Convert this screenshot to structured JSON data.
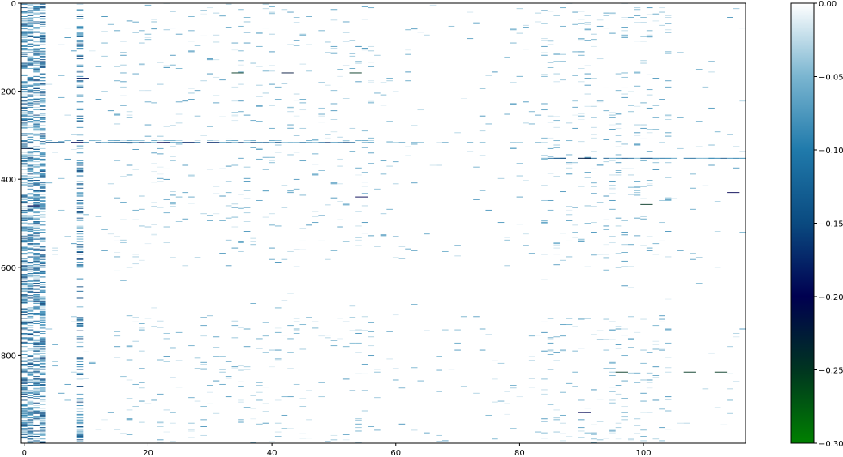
{
  "chart_data": {
    "type": "heatmap",
    "title": "",
    "xlabel": "",
    "ylabel": "",
    "xlim": [
      -0.5,
      116.5
    ],
    "ylim": [
      1000,
      0
    ],
    "x_ticks": [
      0,
      20,
      40,
      60,
      80,
      100
    ],
    "x_tick_labels": [
      "0",
      "20",
      "40",
      "60",
      "80",
      "100"
    ],
    "y_ticks": [
      0,
      200,
      400,
      600,
      800
    ],
    "y_tick_labels": [
      "0",
      "200",
      "400",
      "600",
      "800"
    ],
    "colorbar": {
      "vmin": -0.3,
      "vmax": 0.0,
      "ticks": [
        0.0,
        -0.05,
        -0.1,
        -0.15,
        -0.2,
        -0.25,
        -0.3
      ],
      "tick_labels": [
        "0.00",
        "−0.05",
        "−0.10",
        "−0.15",
        "−0.20",
        "−0.25",
        "−0.30"
      ],
      "colormap": "ocean",
      "colors": [
        "#008000",
        "#003520",
        "#000050",
        "#0a4a80",
        "#207aab",
        "#7ab5d0",
        "#ffffff"
      ]
    },
    "grid": false,
    "background_value": 0.0,
    "hot_cells": [
      {
        "x": 0,
        "y": 330,
        "value": -0.22
      },
      {
        "x": 1,
        "y": 460,
        "value": -0.2
      },
      {
        "x": 2,
        "y": 560,
        "value": -0.18
      },
      {
        "x": 4,
        "y": 316,
        "value": -0.15
      },
      {
        "x": 8,
        "y": 316,
        "value": -0.2
      },
      {
        "x": 9,
        "y": 170,
        "value": -0.18
      },
      {
        "x": 16,
        "y": 316,
        "value": -0.15
      },
      {
        "x": 22,
        "y": 316,
        "value": -0.2
      },
      {
        "x": 26,
        "y": 316,
        "value": -0.18
      },
      {
        "x": 30,
        "y": 316,
        "value": -0.18
      },
      {
        "x": 34,
        "y": 158,
        "value": -0.25
      },
      {
        "x": 42,
        "y": 158,
        "value": -0.22
      },
      {
        "x": 53,
        "y": 158,
        "value": -0.25
      },
      {
        "x": 54,
        "y": 440,
        "value": -0.2
      },
      {
        "x": 86,
        "y": 352,
        "value": -0.15
      },
      {
        "x": 90,
        "y": 352,
        "value": -0.22
      },
      {
        "x": 96,
        "y": 838,
        "value": -0.25
      },
      {
        "x": 100,
        "y": 352,
        "value": -0.15
      },
      {
        "x": 100,
        "y": 457,
        "value": -0.25
      },
      {
        "x": 107,
        "y": 838,
        "value": -0.25
      },
      {
        "x": 112,
        "y": 838,
        "value": -0.25
      },
      {
        "x": 114,
        "y": 430,
        "value": -0.2
      },
      {
        "x": 90,
        "y": 930,
        "value": -0.2
      }
    ]
  }
}
